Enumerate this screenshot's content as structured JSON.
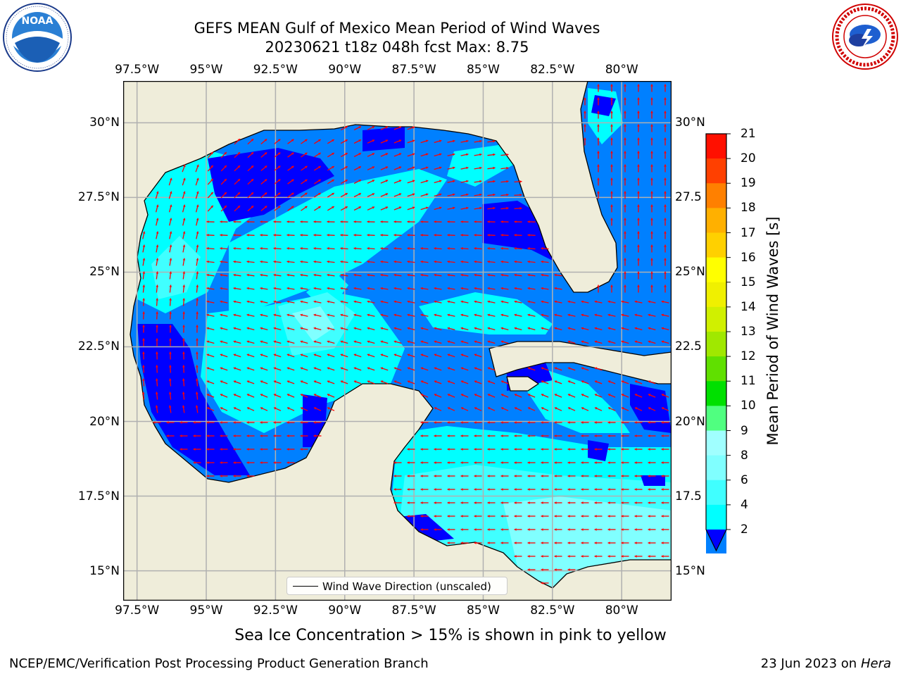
{
  "title": {
    "line1": "GEFS MEAN Gulf of Mexico Mean Period of Wind Waves",
    "line2": "20230621 t18z 048h fcst   Max: 8.75"
  },
  "axes": {
    "lon_labels": [
      "97.5°W",
      "95°W",
      "92.5°W",
      "90°W",
      "87.5°W",
      "85°W",
      "82.5°W",
      "80°W"
    ],
    "lon_values": [
      -97.5,
      -95,
      -92.5,
      -90,
      -87.5,
      -85,
      -82.5,
      -80
    ],
    "lat_labels_left": [
      "30°N",
      "27.5°N",
      "25°N",
      "22.5°N",
      "20°N",
      "17.5°N",
      "15°N"
    ],
    "lat_labels_right": [
      "30°N",
      "27.5",
      "25°N",
      "22.5",
      "20°N",
      "17.5",
      "15°N"
    ],
    "lat_values": [
      30,
      27.5,
      25,
      22.5,
      20,
      17.5,
      15
    ],
    "lon_range": [
      -98,
      -78.2
    ],
    "lat_range": [
      14,
      31.4
    ]
  },
  "colorbar": {
    "label": "Mean Period of Wind Waves [s]",
    "tick_labels": [
      "2",
      "4",
      "6",
      "8",
      "9",
      "10",
      "11",
      "12",
      "13",
      "14",
      "15",
      "16",
      "17",
      "18",
      "19",
      "20",
      "21"
    ],
    "colors": [
      "#0080ff",
      "#00ffff",
      "#40ffff",
      "#80ffff",
      "#a0ffff",
      "#50ff80",
      "#00e000",
      "#60e000",
      "#a0e800",
      "#d0f000",
      "#f0f000",
      "#ffff00",
      "#ffd000",
      "#ffb000",
      "#ff8000",
      "#ff4000",
      "#ff1000"
    ],
    "under_color": "#0000ff",
    "extend": "min"
  },
  "legend": {
    "label": "Wind Wave Direction (unscaled)"
  },
  "note": "Sea Ice Concentration > 15% is shown in pink to yellow",
  "footer": {
    "left": "NCEP/EMC/Verification Post Processing Product Generation Branch",
    "date": "23 Jun 2023 on",
    "machine": "Hera"
  },
  "logos": {
    "noaa_text": "NOAA",
    "nws_text": "NATIONAL WEATHER SERVICE"
  },
  "colors": {
    "land": "#efedda",
    "grid": "#b0b0b0",
    "arrow": "#ff0000",
    "coast": "#000000"
  }
}
